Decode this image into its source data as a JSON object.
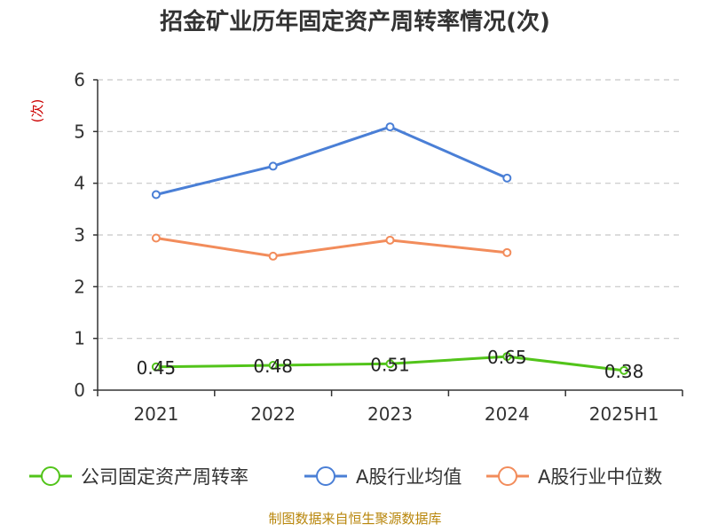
{
  "chart_data": {
    "type": "line",
    "title": "招金矿业历年固定资产周转率情况(次)",
    "ylabel": "(次)",
    "xlabel": "",
    "categories": [
      "2021",
      "2022",
      "2023",
      "2024",
      "2025H1"
    ],
    "ylim": [
      0,
      6
    ],
    "yticks": [
      "0",
      "1",
      "2",
      "3",
      "4",
      "5",
      "6"
    ],
    "grid": true,
    "legend_position": "bottom",
    "series": [
      {
        "name": "公司固定资产周转率",
        "color": "#52c41a",
        "values": [
          0.45,
          0.48,
          0.51,
          0.65,
          0.38
        ],
        "labels": [
          "0.45",
          "0.48",
          "0.51",
          "0.65",
          "0.38"
        ]
      },
      {
        "name": "A股行业均值",
        "color": "#4a7fd6",
        "values": [
          3.78,
          4.33,
          5.09,
          4.1,
          null
        ]
      },
      {
        "name": "A股行业中位数",
        "color": "#f28c5b",
        "values": [
          2.94,
          2.59,
          2.9,
          2.66,
          null
        ]
      }
    ],
    "source": "制图数据来自恒生聚源数据库"
  }
}
